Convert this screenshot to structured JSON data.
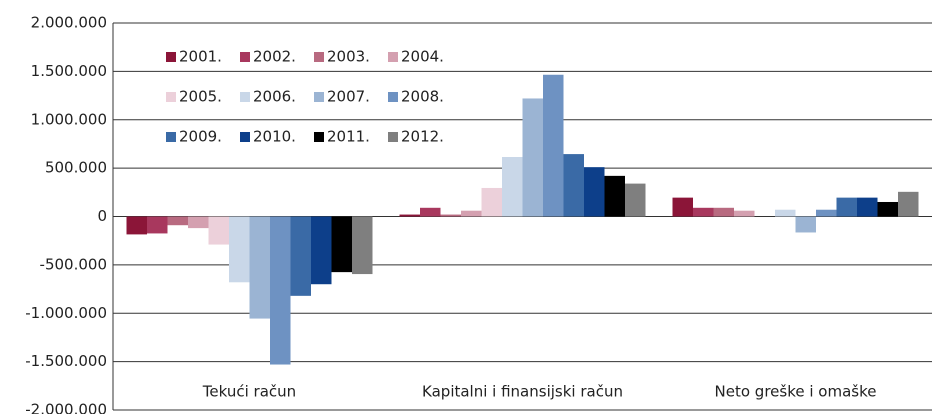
{
  "chart_data": {
    "type": "bar",
    "categories": [
      "Tekući račun",
      "Kapitalni i finansijski račun",
      "Neto greške i omaške"
    ],
    "series": [
      {
        "name": "2001.",
        "color": "#8b1538",
        "values": [
          -185000,
          20000,
          195000
        ]
      },
      {
        "name": "2002.",
        "color": "#a8385e",
        "values": [
          -175000,
          90000,
          90000
        ]
      },
      {
        "name": "2003.",
        "color": "#b86a80",
        "values": [
          -90000,
          20000,
          90000
        ]
      },
      {
        "name": "2004.",
        "color": "#d4a0b0",
        "values": [
          -120000,
          60000,
          60000
        ]
      },
      {
        "name": "2005.",
        "color": "#ecd0da",
        "values": [
          -290000,
          295000,
          0
        ]
      },
      {
        "name": "2006.",
        "color": "#c9d7e8",
        "values": [
          -680000,
          615000,
          70000
        ]
      },
      {
        "name": "2007.",
        "color": "#9bb4d3",
        "values": [
          -1055000,
          1220000,
          -165000
        ]
      },
      {
        "name": "2008.",
        "color": "#6e92c2",
        "values": [
          -1530000,
          1465000,
          70000
        ]
      },
      {
        "name": "2009.",
        "color": "#3a6aa6",
        "values": [
          -820000,
          645000,
          195000
        ]
      },
      {
        "name": "2010.",
        "color": "#0d3f8a",
        "values": [
          -700000,
          510000,
          195000
        ]
      },
      {
        "name": "2011.",
        "color": "#000000",
        "values": [
          -575000,
          420000,
          150000
        ]
      },
      {
        "name": "2012.",
        "color": "#7f7f7f",
        "values": [
          -595000,
          340000,
          255000
        ]
      }
    ],
    "ylim": [
      -2000000,
      2000000
    ],
    "yticks": [
      {
        "value": 2000000,
        "label": "2.000.000"
      },
      {
        "value": 1500000,
        "label": "1.500.000"
      },
      {
        "value": 1000000,
        "label": "1.000.000"
      },
      {
        "value": 500000,
        "label": "500.000"
      },
      0,
      {
        "value": -500000,
        "label": "-500.000"
      },
      {
        "value": -1000000,
        "label": "-1.000.000"
      },
      {
        "value": -1500000,
        "label": "-1.500.000"
      },
      {
        "value": -2000000,
        "label": "-2.000.000"
      }
    ],
    "grid": true,
    "legend": "top-left"
  }
}
